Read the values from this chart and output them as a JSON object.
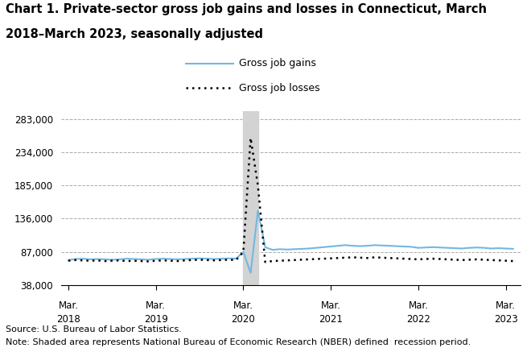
{
  "title_line1": "Chart 1. Private-sector gross job gains and losses in Connecticut, March",
  "title_line2": "2018–March 2023, seasonally adjusted",
  "title_fontsize": 10.5,
  "source_text": "Source: U.S. Bureau of Labor Statistics.",
  "note_text": "Note: Shaded area represents National Bureau of Economic Research (NBER) defined  recession period.",
  "ylim": [
    38000,
    295000
  ],
  "yticks": [
    38000,
    87000,
    136000,
    185000,
    234000,
    283000
  ],
  "ytick_labels": [
    "38,000",
    "87,000",
    "136,000",
    "185,000",
    "234,000",
    "283,000"
  ],
  "recession_start": 24,
  "recession_end": 26,
  "gains_color": "#72b8e0",
  "losses_color": "#000000",
  "shading_color": "#d3d3d3",
  "gains_label": "Gross job gains",
  "losses_label": "Gross job losses",
  "gains": [
    75000,
    76500,
    77000,
    76000,
    76500,
    76000,
    75500,
    76000,
    77000,
    76500,
    76000,
    75500,
    76500,
    77000,
    76500,
    76000,
    76500,
    77000,
    77500,
    77000,
    76500,
    77000,
    77500,
    77000,
    87000,
    56000,
    148000,
    94000,
    90000,
    91000,
    90500,
    91000,
    91500,
    92000,
    93000,
    94000,
    95000,
    96000,
    97000,
    96000,
    95500,
    96000,
    97000,
    96500,
    96000,
    95500,
    95000,
    94500,
    93000,
    93500,
    94000,
    93500,
    93000,
    92500,
    92000,
    93000,
    93500,
    93000,
    92000,
    92500,
    92000,
    91500
  ],
  "losses": [
    74000,
    75000,
    74500,
    74000,
    74500,
    73500,
    74000,
    74500,
    73500,
    74000,
    73500,
    73000,
    74000,
    74500,
    74000,
    73500,
    74500,
    75000,
    75500,
    75000,
    74500,
    75000,
    75500,
    75000,
    87000,
    255000,
    185000,
    72000,
    73500,
    74000,
    74500,
    75000,
    75500,
    76000,
    76500,
    77000,
    77500,
    78000,
    78500,
    79000,
    78500,
    78000,
    79000,
    78500,
    78000,
    77500,
    77000,
    76500,
    76000,
    76500,
    77000,
    76500,
    76000,
    75500,
    75000,
    75500,
    76000,
    75500,
    75000,
    74500,
    74000,
    73500
  ],
  "n_points": 62,
  "xtick_positions": [
    0,
    12,
    24,
    36,
    48,
    60
  ],
  "xtick_top": [
    "Mar.",
    "Mar.",
    "Mar.",
    "Mar.",
    "Mar.",
    "Mar."
  ],
  "xtick_bot": [
    "2018",
    "2019",
    "2020",
    "2021",
    "2022",
    "2023"
  ]
}
